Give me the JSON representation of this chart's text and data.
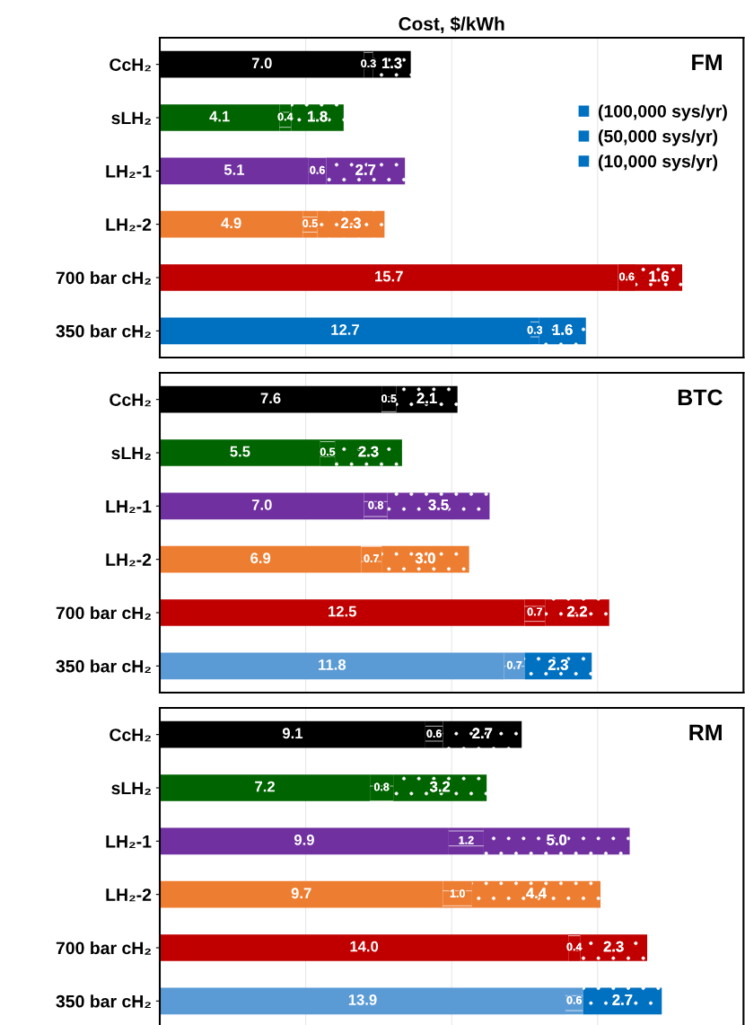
{
  "chart_data": [
    {
      "type": "bar",
      "orientation": "horizontal",
      "stacked": true,
      "title": "Cost, $/kWh",
      "annotations": [
        "FM"
      ],
      "categories": [
        "CcH₂",
        "sLH₂",
        "LH₂-1",
        "LH₂-2",
        "700 bar cH₂",
        "350 bar cH₂"
      ],
      "xlim": [
        0,
        20
      ],
      "xticks": [
        {
          "value": 0,
          "label": null
        },
        {
          "value": 5,
          "label": null
        },
        {
          "value": 10,
          "label": null
        },
        {
          "value": 15,
          "label": null
        },
        {
          "value": 20,
          "label": null
        }
      ],
      "grid": "x",
      "tick_labels": "y",
      "legend": "top right",
      "series": [
        {
          "name": "(100,000 sys/yr)",
          "color": "#0070c0",
          "colors": [
            "#000000",
            "#006400",
            "#7030a0",
            "#ed7d31",
            "#c00000",
            "#0070c0"
          ],
          "values": [
            7.0,
            4.1,
            5.1,
            4.9,
            15.7,
            12.7
          ],
          "value_labels": [
            "7.0",
            "4.1",
            "5.1",
            "4.9",
            "15.7",
            "12.7"
          ]
        },
        {
          "name": "(50,000 sys/yr)",
          "color": "#0070c0",
          "colors": [
            "#000000",
            "#006400",
            "#7030a0",
            "#ed7d31",
            "#c00000",
            "#0070c0"
          ],
          "values": [
            0.3,
            0.4,
            0.6,
            0.5,
            0.6,
            0.3
          ],
          "value_labels": [
            "0.3",
            "0.4",
            "0.6",
            "0.5",
            "0.6",
            "0.3"
          ]
        },
        {
          "name": "(10,000 sys/yr)",
          "color": "#0070c0",
          "colors": [
            "#000000",
            "#006400",
            "#7030a0",
            "#ed7d31",
            "#c00000",
            "#0070c0"
          ],
          "values": [
            1.3,
            1.8,
            2.7,
            2.3,
            1.6,
            1.6
          ],
          "value_labels": [
            "1.3",
            "1.8",
            "2.7",
            "2.3",
            "1.6",
            "1.6"
          ]
        }
      ]
    },
    {
      "type": "bar",
      "orientation": "horizontal",
      "stacked": true,
      "annotations": [
        "BTC"
      ],
      "categories": [
        "CcH₂",
        "sLH₂",
        "LH₂-1",
        "LH₂-2",
        "700 bar cH₂",
        "350 bar cH₂"
      ],
      "xlim": [
        0,
        20
      ],
      "xticks": [
        {
          "value": 0,
          "label": null
        },
        {
          "value": 5,
          "label": null
        },
        {
          "value": 10,
          "label": null
        },
        {
          "value": 15,
          "label": null
        },
        {
          "value": 20,
          "label": null
        }
      ],
      "grid": "x",
      "tick_labels": "y",
      "series": [
        {
          "colors": [
            "#000000",
            "#006400",
            "#7030a0",
            "#ed7d31",
            "#c00000",
            "#5b9bd5"
          ],
          "values": [
            7.6,
            5.5,
            7.0,
            6.9,
            12.5,
            11.8
          ],
          "value_labels": [
            "7.6",
            "5.5",
            "7.0",
            "6.9",
            "12.5",
            "11.8"
          ]
        },
        {
          "colors": [
            "#000000",
            "#006400",
            "#7030a0",
            "#ed7d31",
            "#c00000",
            "#5b9bd5"
          ],
          "values": [
            0.5,
            0.5,
            0.8,
            0.7,
            0.7,
            0.7
          ],
          "value_labels": [
            "0.5",
            "0.5",
            "0.8",
            "0.7",
            "0.7",
            "0.7"
          ]
        },
        {
          "colors": [
            "#000000",
            "#006400",
            "#7030a0",
            "#ed7d31",
            "#c00000",
            "#0070c0"
          ],
          "values": [
            2.1,
            2.3,
            3.5,
            3.0,
            2.2,
            2.3
          ],
          "value_labels": [
            "2.1",
            "2.3",
            "3.5",
            "3.0",
            "2.2",
            "2.3"
          ]
        }
      ]
    },
    {
      "type": "bar",
      "orientation": "horizontal",
      "stacked": true,
      "annotations": [
        "RM"
      ],
      "categories": [
        "CcH₂",
        "sLH₂",
        "LH₂-1",
        "LH₂-2",
        "700 bar cH₂",
        "350 bar cH₂"
      ],
      "xlim": [
        0,
        20
      ],
      "xticks": [
        {
          "value": 0,
          "label": null
        },
        {
          "value": 5,
          "label": null
        },
        {
          "value": 10,
          "label": null
        },
        {
          "value": 15,
          "label": null
        },
        {
          "value": 20,
          "label": null
        }
      ],
      "grid": "x",
      "tick_labels": "y",
      "series": [
        {
          "colors": [
            "#000000",
            "#006400",
            "#7030a0",
            "#ed7d31",
            "#c00000",
            "#5b9bd5"
          ],
          "values": [
            9.1,
            7.2,
            9.9,
            9.7,
            14.0,
            13.9
          ],
          "value_labels": [
            "9.1",
            "7.2",
            "9.9",
            "9.7",
            "14.0",
            "13.9"
          ]
        },
        {
          "colors": [
            "#000000",
            "#006400",
            "#7030a0",
            "#ed7d31",
            "#c00000",
            "#5b9bd5"
          ],
          "values": [
            0.6,
            0.8,
            1.2,
            1.0,
            0.4,
            0.6
          ],
          "value_labels": [
            "0.6",
            "0.8",
            "1.2",
            "1.0",
            "0.4",
            "0.6"
          ]
        },
        {
          "colors": [
            "#000000",
            "#006400",
            "#7030a0",
            "#ed7d31",
            "#c00000",
            "#0070c0"
          ],
          "values": [
            2.7,
            3.2,
            5.0,
            4.4,
            2.3,
            2.7
          ],
          "value_labels": [
            "2.7",
            "3.2",
            "5.0",
            "4.4",
            "2.3",
            "2.7"
          ]
        }
      ]
    }
  ]
}
